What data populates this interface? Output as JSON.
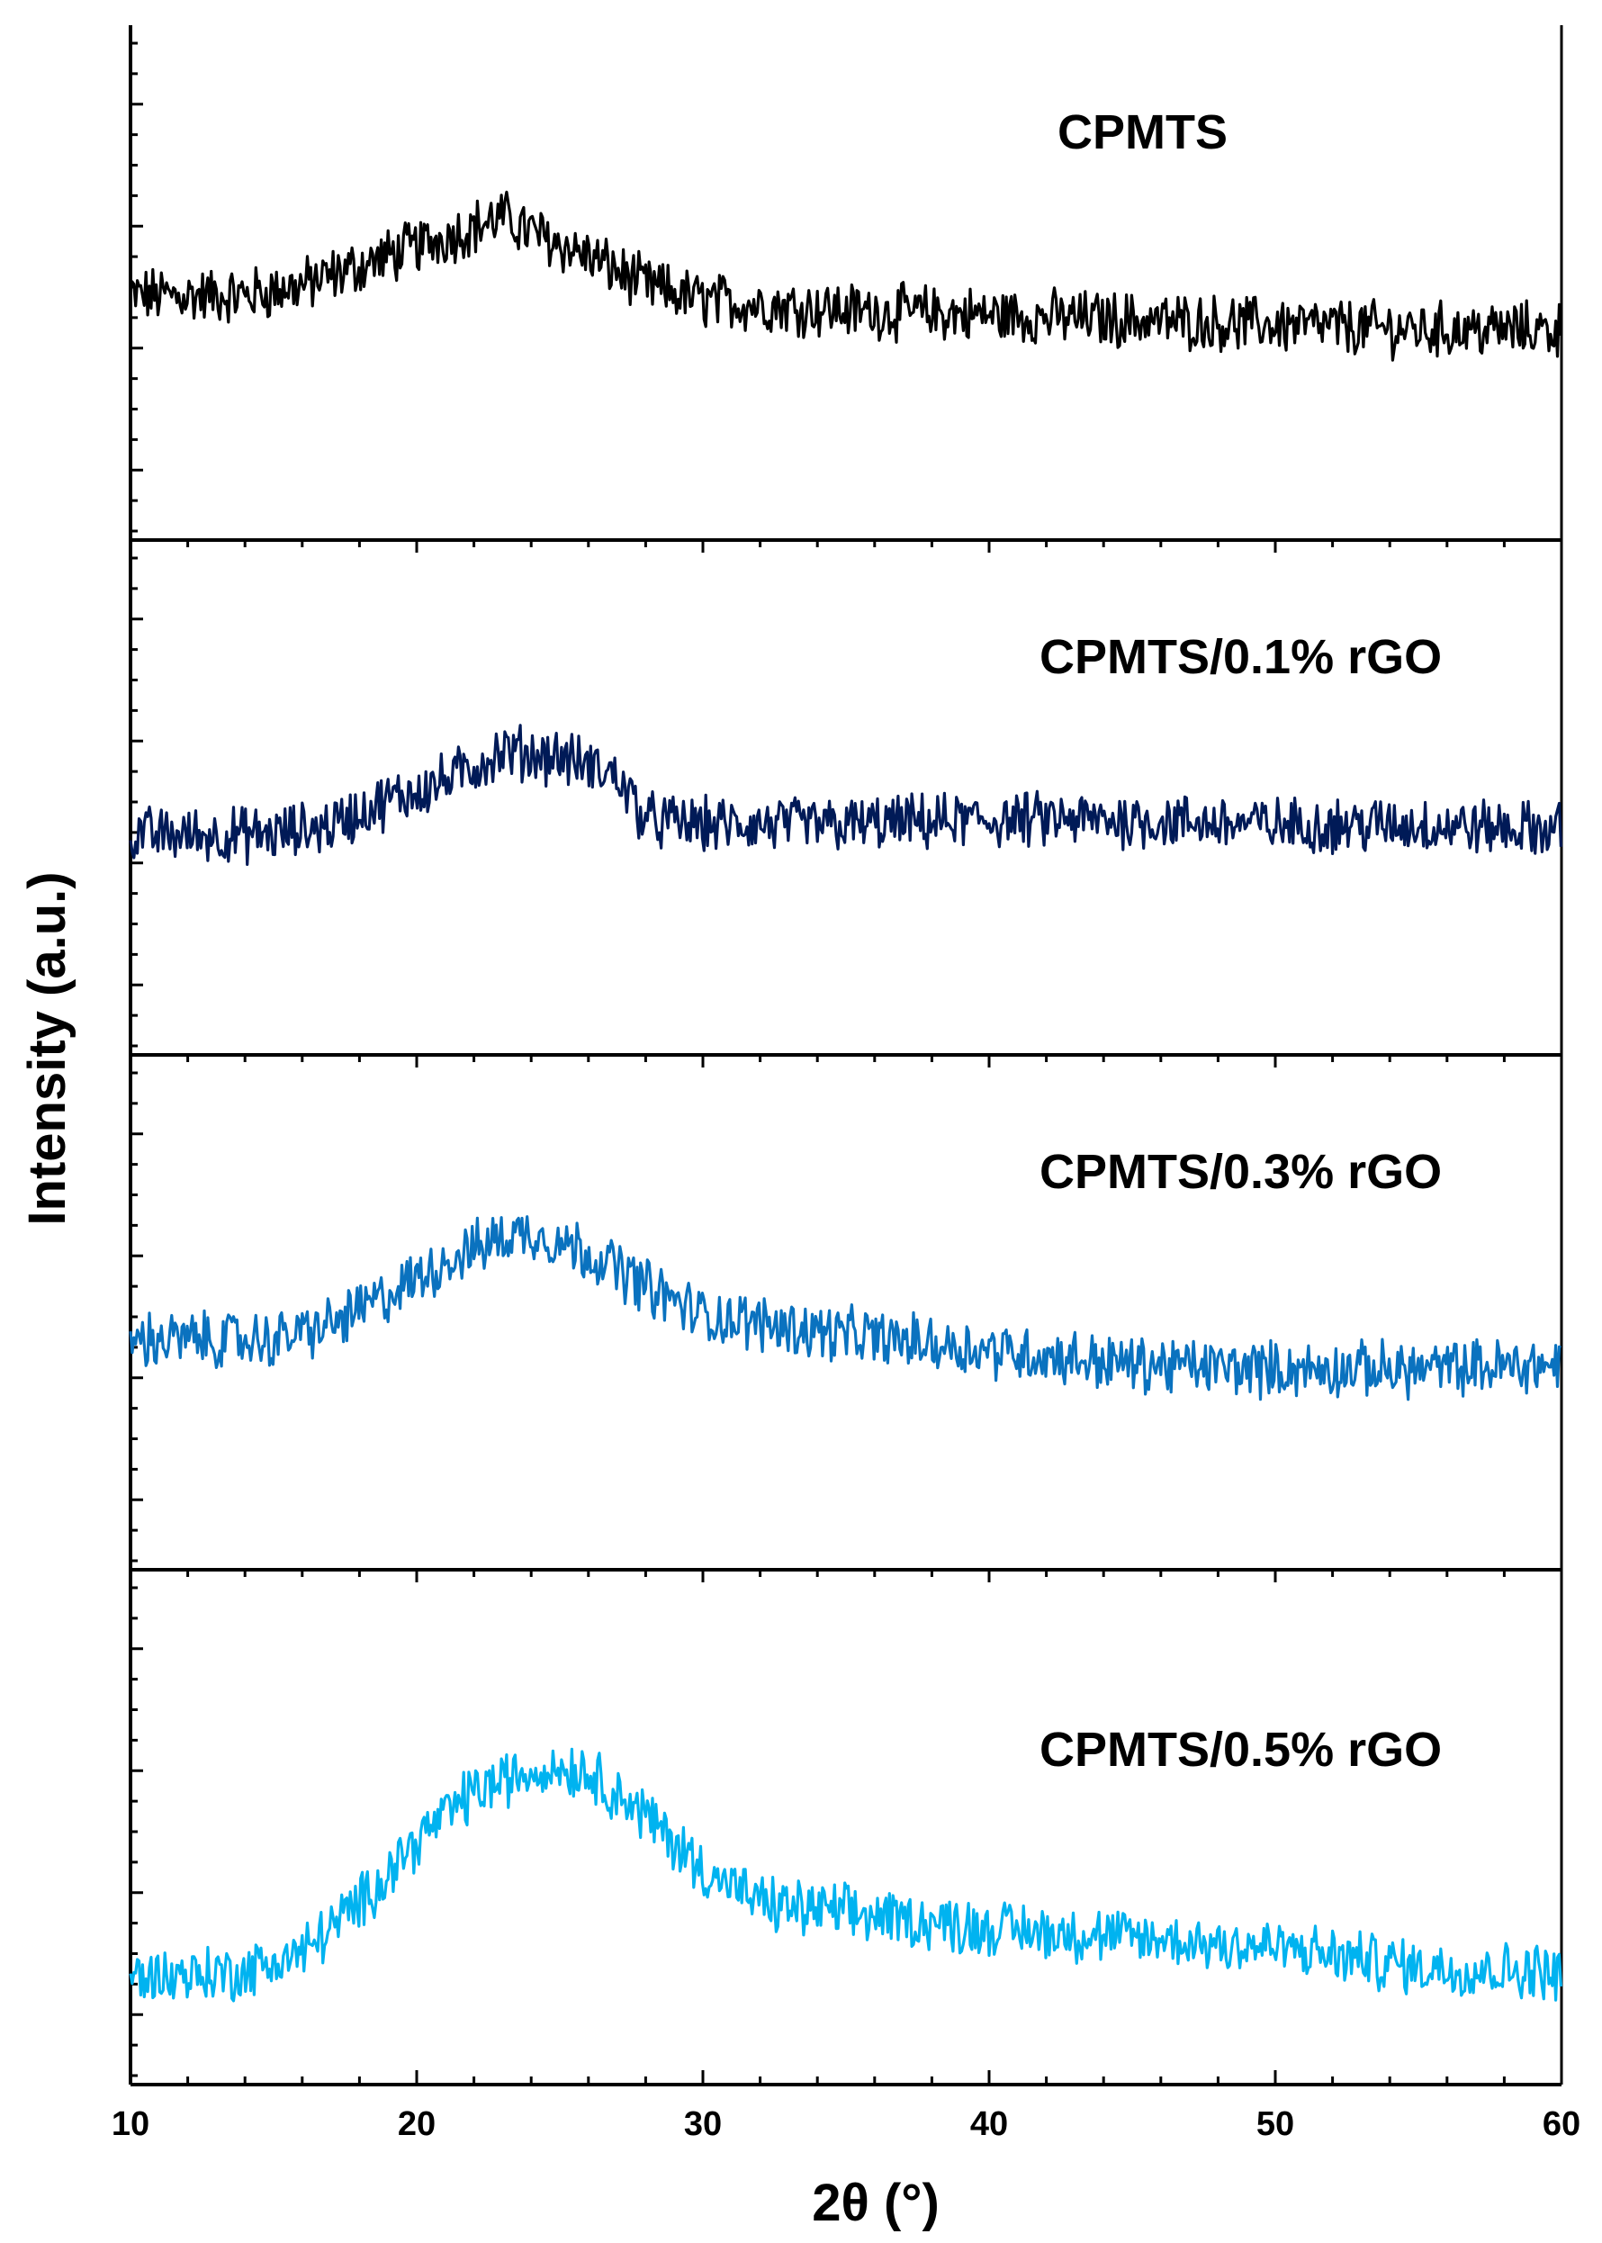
{
  "chart_data": {
    "type": "line",
    "layout": "stacked panels",
    "xlabel": "2θ (°)",
    "ylabel": "Intensity (a.u.)",
    "xlim": [
      10,
      60
    ],
    "xticks": [
      10,
      20,
      30,
      40,
      50,
      60
    ],
    "y_ticks_labeled": false,
    "grid": false,
    "series": [
      {
        "name": "CPMTS",
        "color": "#000000",
        "baseline": 0.5,
        "noise": 0.05,
        "profile": [
          [
            10,
            0.5
          ],
          [
            14,
            0.5
          ],
          [
            16,
            0.52
          ],
          [
            18,
            0.56
          ],
          [
            20,
            0.6
          ],
          [
            22,
            0.64
          ],
          [
            23,
            0.66
          ],
          [
            24,
            0.63
          ],
          [
            26,
            0.58
          ],
          [
            28,
            0.52
          ],
          [
            30,
            0.49
          ],
          [
            35,
            0.47
          ],
          [
            40,
            0.46
          ],
          [
            45,
            0.45
          ],
          [
            50,
            0.44
          ],
          [
            55,
            0.43
          ],
          [
            60,
            0.43
          ]
        ]
      },
      {
        "name": "CPMTS/0.1% rGO",
        "color": "#001A57",
        "baseline": 0.45,
        "noise": 0.05,
        "profile": [
          [
            10,
            0.45
          ],
          [
            15,
            0.45
          ],
          [
            17,
            0.47
          ],
          [
            19,
            0.52
          ],
          [
            21,
            0.56
          ],
          [
            23,
            0.62
          ],
          [
            25,
            0.61
          ],
          [
            27,
            0.57
          ],
          [
            28,
            0.48
          ],
          [
            30,
            0.47
          ],
          [
            35,
            0.47
          ],
          [
            40,
            0.48
          ],
          [
            45,
            0.48
          ],
          [
            50,
            0.47
          ],
          [
            55,
            0.47
          ],
          [
            60,
            0.46
          ]
        ]
      },
      {
        "name": "CPMTS/0.3% rGO",
        "color": "#0A72BF",
        "baseline": 0.47,
        "noise": 0.05,
        "profile": [
          [
            10,
            0.47
          ],
          [
            15,
            0.47
          ],
          [
            17,
            0.5
          ],
          [
            19,
            0.56
          ],
          [
            21,
            0.63
          ],
          [
            23,
            0.68
          ],
          [
            24,
            0.69
          ],
          [
            26,
            0.65
          ],
          [
            28,
            0.58
          ],
          [
            30,
            0.52
          ],
          [
            35,
            0.48
          ],
          [
            40,
            0.45
          ],
          [
            45,
            0.42
          ],
          [
            50,
            0.41
          ],
          [
            55,
            0.41
          ],
          [
            60,
            0.42
          ]
        ]
      },
      {
        "name": "CPMTS/0.5% rGO",
        "color": "#00B3F0",
        "baseline": 0.22,
        "noise": 0.05,
        "profile": [
          [
            10,
            0.22
          ],
          [
            14,
            0.23
          ],
          [
            16,
            0.27
          ],
          [
            18,
            0.37
          ],
          [
            20,
            0.5
          ],
          [
            22,
            0.6
          ],
          [
            24,
            0.64
          ],
          [
            25,
            0.65
          ],
          [
            26,
            0.64
          ],
          [
            28,
            0.55
          ],
          [
            30,
            0.44
          ],
          [
            32,
            0.37
          ],
          [
            35,
            0.35
          ],
          [
            40,
            0.32
          ],
          [
            45,
            0.3
          ],
          [
            50,
            0.28
          ],
          [
            55,
            0.24
          ],
          [
            60,
            0.23
          ]
        ]
      }
    ]
  }
}
